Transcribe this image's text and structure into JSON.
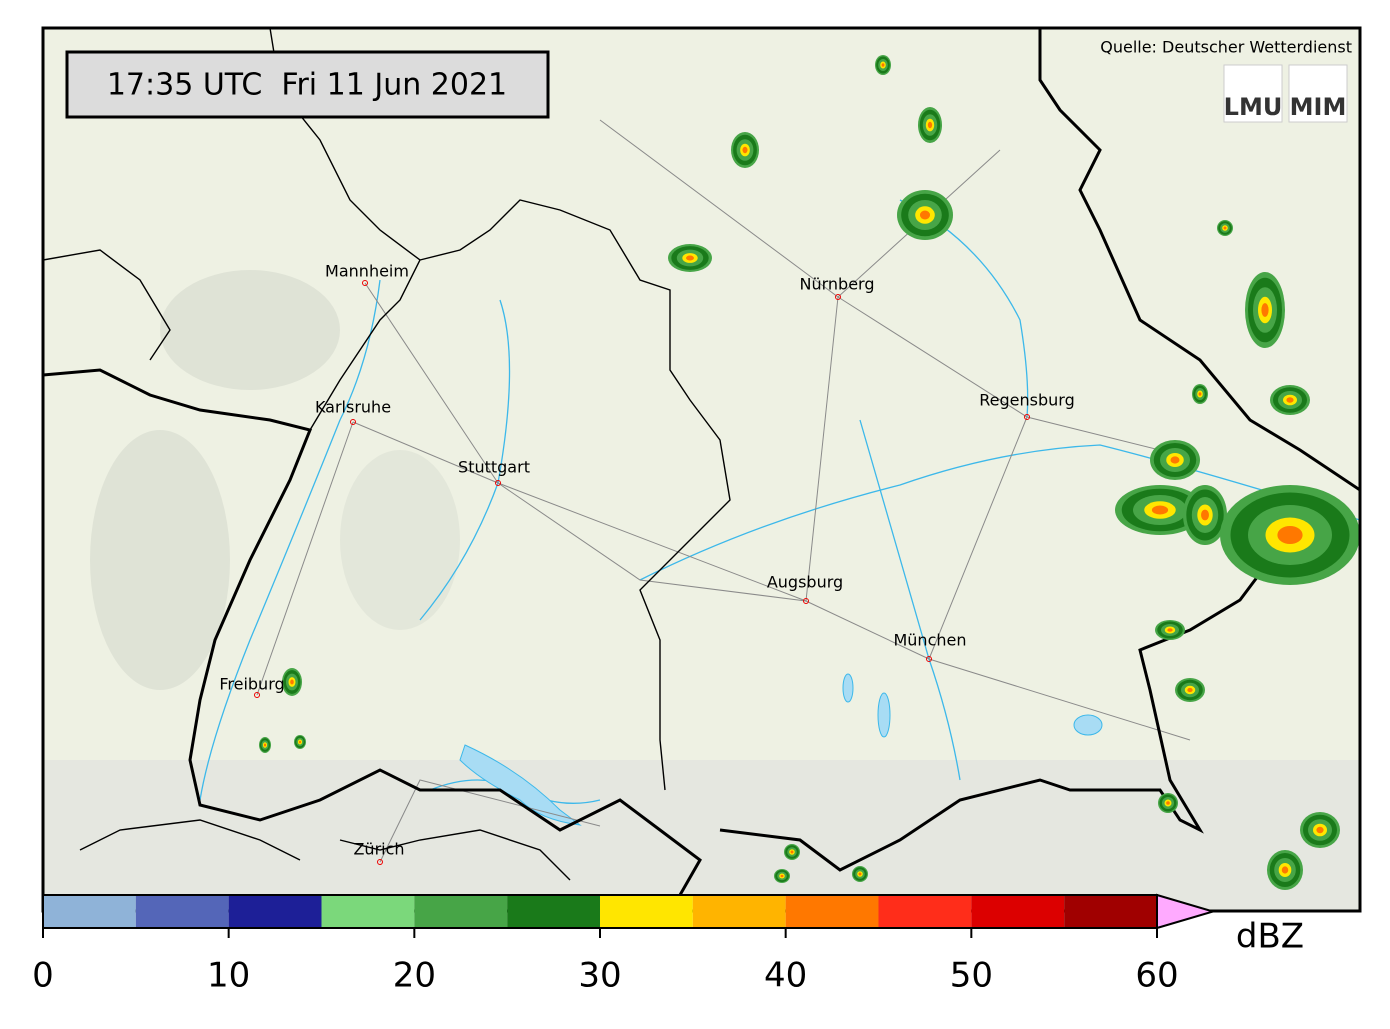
{
  "header": {
    "timestamp": "17:35 UTC  Fri 11 Jun 2021",
    "source": "Quelle: Deutscher Wetterdienst",
    "logos": [
      "LMU",
      "MIM"
    ]
  },
  "map": {
    "cities": [
      "Mannheim",
      "Nürnberg",
      "Karlsruhe",
      "Regensburg",
      "Stuttgart",
      "Augsburg",
      "München",
      "Freiburg",
      "Zürich"
    ]
  },
  "colorbar": {
    "unit": "dBZ",
    "bins": [
      0,
      5,
      10,
      15,
      20,
      25,
      30,
      35,
      40,
      45,
      50,
      55,
      60
    ],
    "colors": [
      "#8fb3d8",
      "#5466b8",
      "#1d1f97",
      "#7bd87b",
      "#47a547",
      "#1a7a1a",
      "#ffe600",
      "#ffb400",
      "#ff7800",
      "#ff2d1a",
      "#dc0000",
      "#a00000"
    ],
    "extend_color": "#ffaaff",
    "ticks": [
      0,
      10,
      20,
      30,
      40,
      50,
      60
    ]
  }
}
